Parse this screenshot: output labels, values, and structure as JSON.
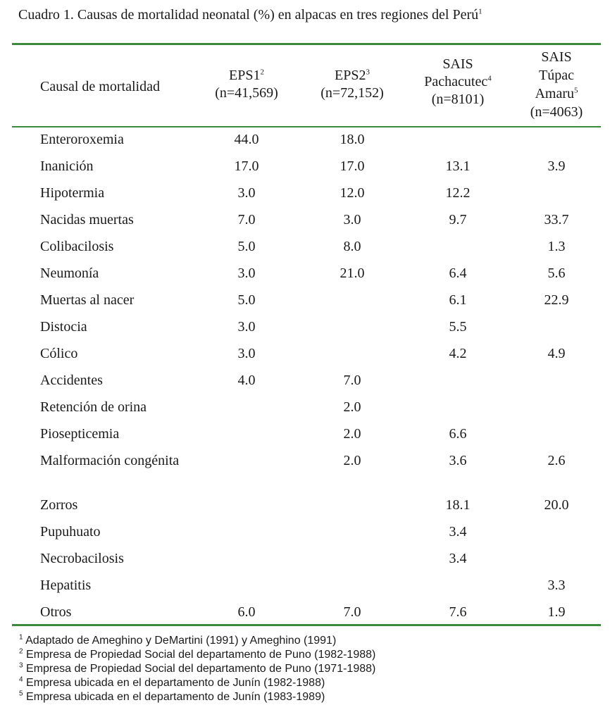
{
  "title": {
    "text": "Cuadro 1. Causas de mortalidad neonatal (%) en alpacas en tres regiones del Perú",
    "sup": "1"
  },
  "header": {
    "cause": "Causal de mortalidad",
    "eps1": {
      "line1": "EPS1",
      "sup": "2",
      "line2": "(n=41,569)"
    },
    "eps2": {
      "line1": "EPS2",
      "sup": "3",
      "line2": "(n=72,152)"
    },
    "pachacutec": {
      "line1": "SAIS",
      "line2": "Pachacutec",
      "sup": "4",
      "line3": "(n=8101)"
    },
    "tupac": {
      "line1": "SAIS",
      "line2": "Túpac",
      "line3": "Amaru",
      "sup": "5",
      "line4": "(n=4063)"
    }
  },
  "rows": [
    {
      "cause": "Enteroroxemia",
      "eps1": "44.0",
      "eps2": "18.0",
      "pachacutec": "",
      "tupac": ""
    },
    {
      "cause": "Inanición",
      "eps1": "17.0",
      "eps2": "17.0",
      "pachacutec": "13.1",
      "tupac": "3.9"
    },
    {
      "cause": "Hipotermia",
      "eps1": "3.0",
      "eps2": "12.0",
      "pachacutec": "12.2",
      "tupac": ""
    },
    {
      "cause": "Nacidas muertas",
      "eps1": "7.0",
      "eps2": "3.0",
      "pachacutec": "9.7",
      "tupac": "33.7"
    },
    {
      "cause": "Colibacilosis",
      "eps1": "5.0",
      "eps2": "8.0",
      "pachacutec": "",
      "tupac": "1.3"
    },
    {
      "cause": "Neumonía",
      "eps1": "3.0",
      "eps2": "21.0",
      "pachacutec": "6.4",
      "tupac": "5.6"
    },
    {
      "cause": "Muertas al nacer",
      "eps1": "5.0",
      "eps2": "",
      "pachacutec": "6.1",
      "tupac": "22.9"
    },
    {
      "cause": "Distocia",
      "eps1": "3.0",
      "eps2": "",
      "pachacutec": "5.5",
      "tupac": ""
    },
    {
      "cause": "Cólico",
      "eps1": "3.0",
      "eps2": "",
      "pachacutec": "4.2",
      "tupac": "4.9"
    },
    {
      "cause": "Accidentes",
      "eps1": "4.0",
      "eps2": "7.0",
      "pachacutec": "",
      "tupac": ""
    },
    {
      "cause": "Retención de orina",
      "eps1": "",
      "eps2": "2.0",
      "pachacutec": "",
      "tupac": ""
    },
    {
      "cause": "Piosepticemia",
      "eps1": "",
      "eps2": "2.0",
      "pachacutec": "6.6",
      "tupac": ""
    },
    {
      "cause": "Malformación congénita",
      "eps1": "",
      "eps2": "2.0",
      "pachacutec": "3.6",
      "tupac": "2.6",
      "tall": true
    },
    {
      "cause": "Zorros",
      "eps1": "",
      "eps2": "",
      "pachacutec": "18.1",
      "tupac": "20.0"
    },
    {
      "cause": "Pupuhuato",
      "eps1": "",
      "eps2": "",
      "pachacutec": "3.4",
      "tupac": ""
    },
    {
      "cause": "Necrobacilosis",
      "eps1": "",
      "eps2": "",
      "pachacutec": "3.4",
      "tupac": ""
    },
    {
      "cause": "Hepatitis",
      "eps1": "",
      "eps2": "",
      "pachacutec": "",
      "tupac": "3.3"
    },
    {
      "cause": "Otros",
      "eps1": "6.0",
      "eps2": "7.0",
      "pachacutec": "7.6",
      "tupac": "1.9"
    }
  ],
  "footnotes": [
    {
      "sup": "1",
      "text": "Adaptado de Ameghino y DeMartini (1991) y Ameghino (1991)"
    },
    {
      "sup": "2",
      "text": "Empresa de Propiedad Social del departamento de Puno (1982-1988)"
    },
    {
      "sup": "3",
      "text": "Empresa de Propiedad Social del departamento de Puno (1971-1988)"
    },
    {
      "sup": "4",
      "text": "Empresa ubicada en el departamento de Junín (1982-1988)"
    },
    {
      "sup": "5",
      "text": "Empresa ubicada en el departamento de Junín (1983-1989)"
    }
  ]
}
